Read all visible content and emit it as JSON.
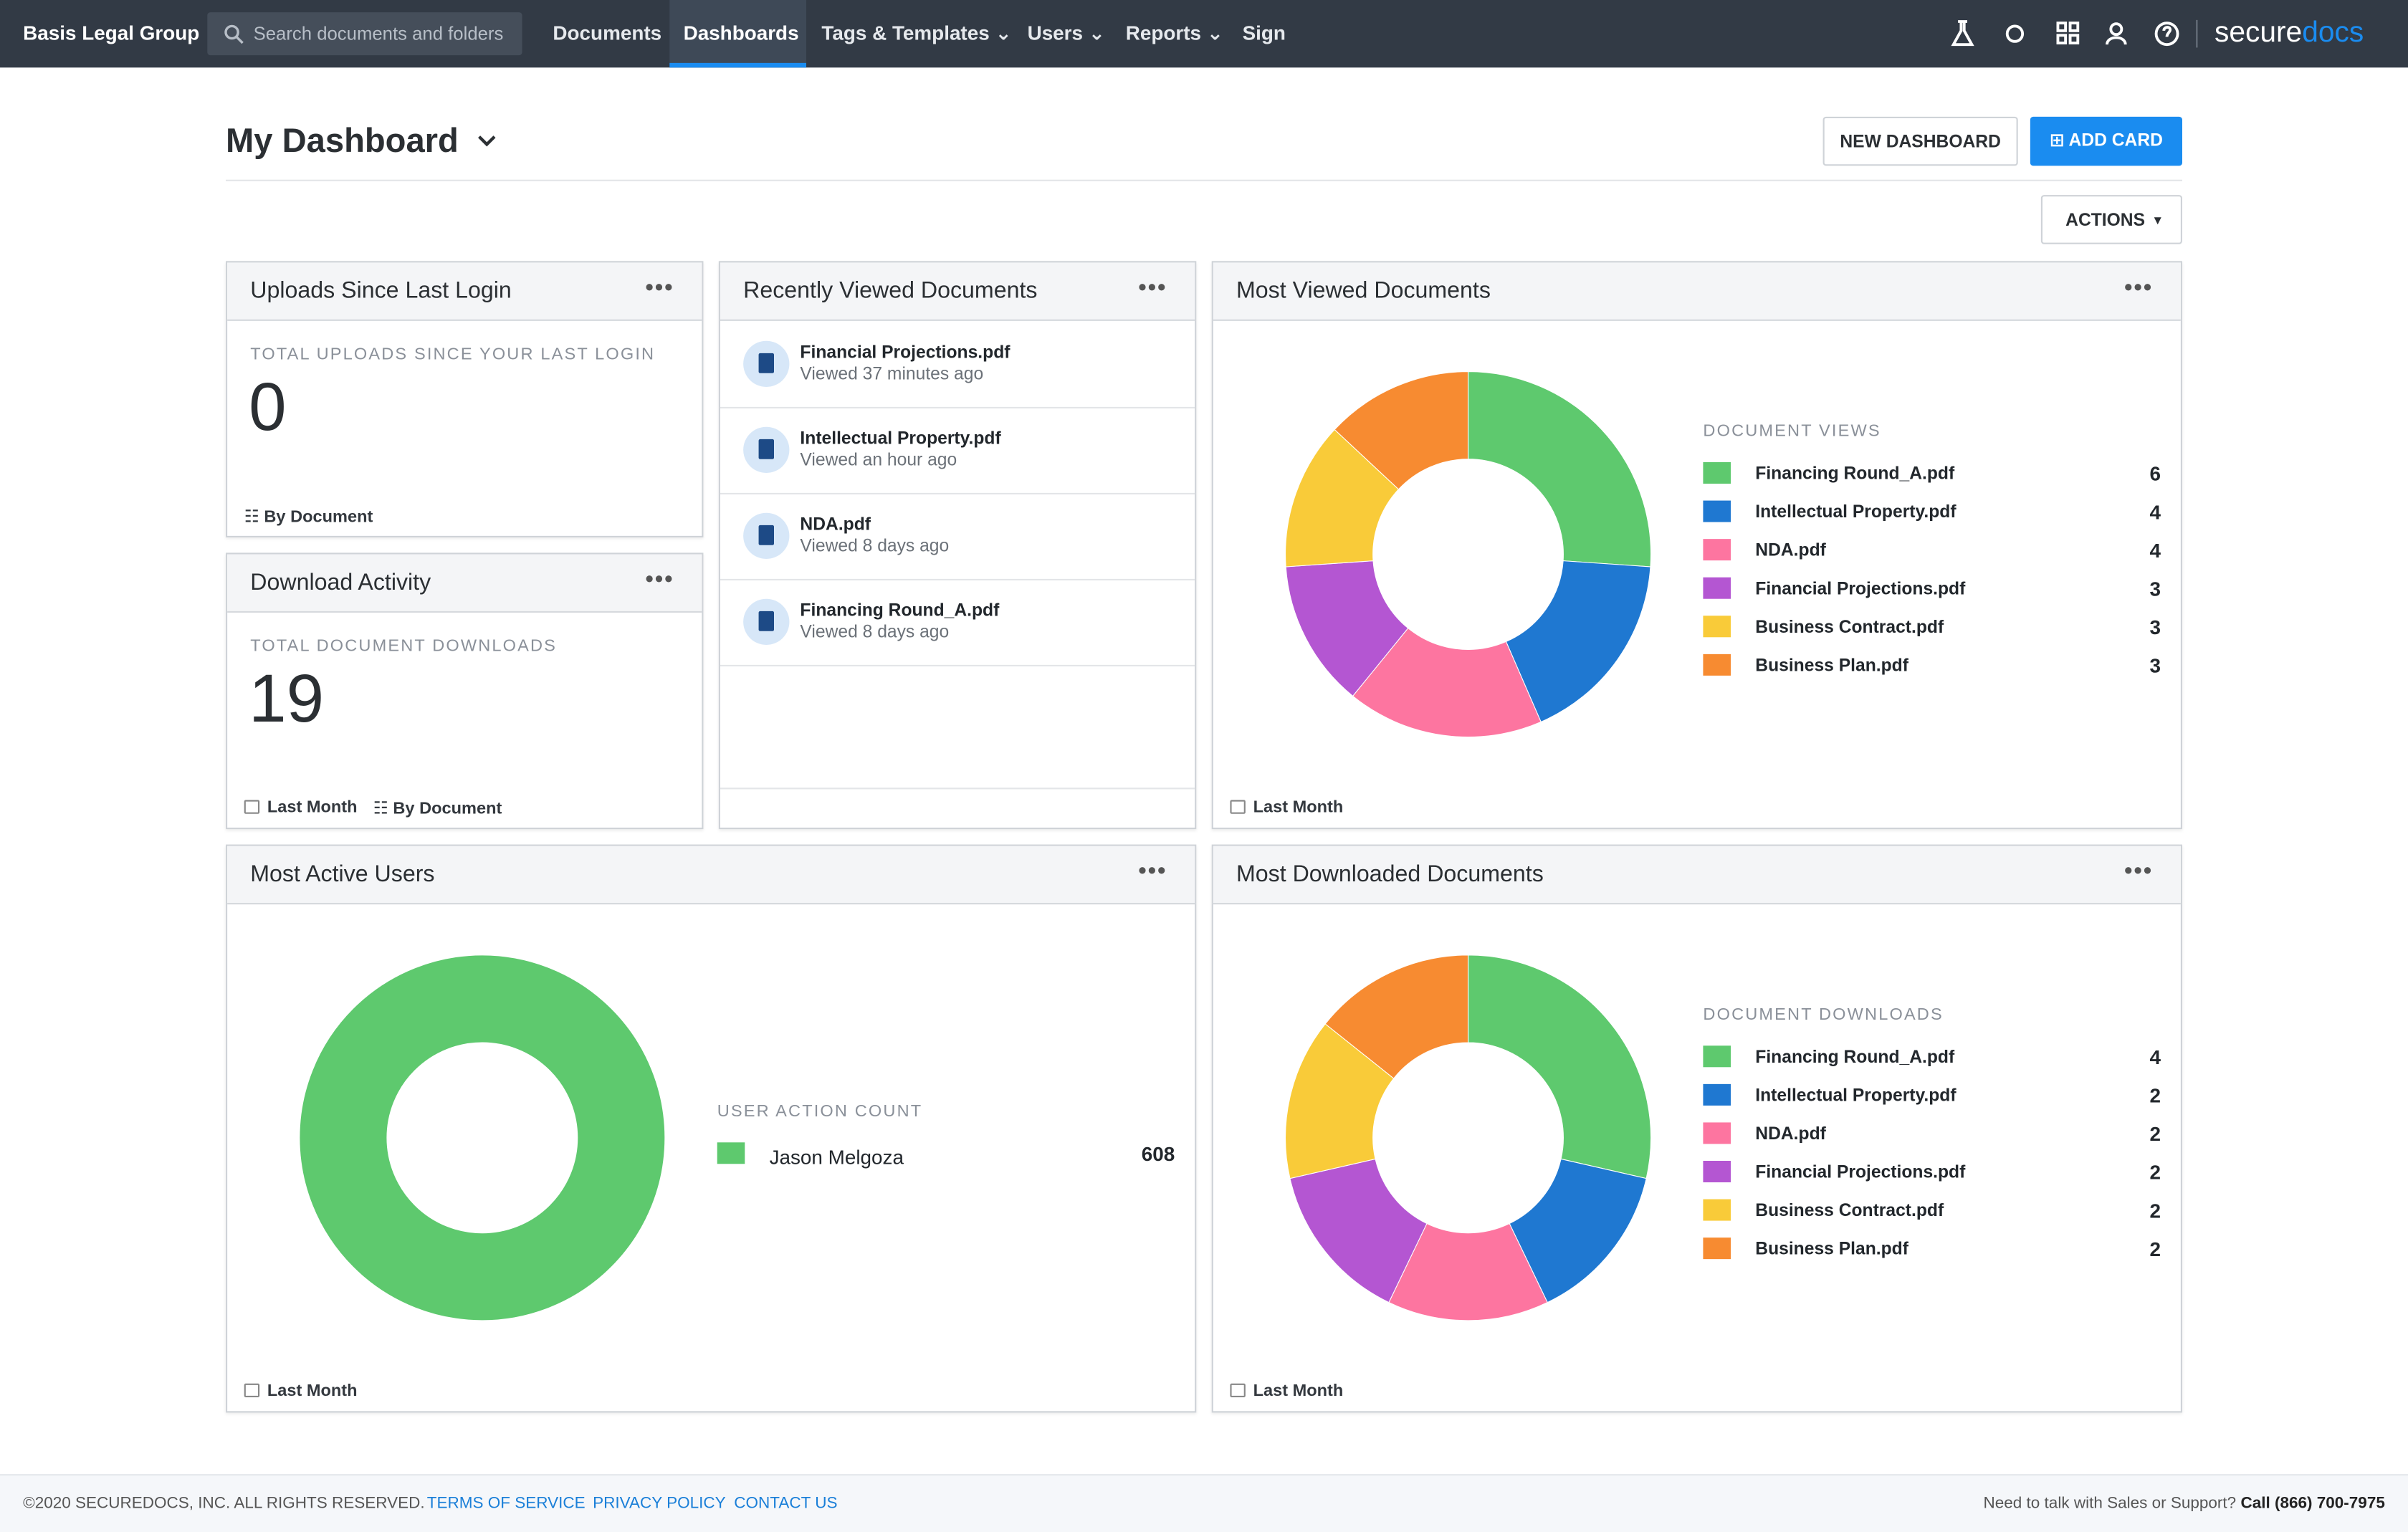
{
  "navbar": {
    "org": "Basis Legal Group",
    "search_placeholder": "Search documents and folders",
    "links": [
      "Documents",
      "Dashboards",
      "Tags & Templates",
      "Users",
      "Reports",
      "Sign"
    ],
    "brand": [
      "secure",
      "docs"
    ]
  },
  "header": {
    "title": "My Dashboard",
    "new_dashboard": "NEW DASHBOARD",
    "add_card": "ADD CARD",
    "actions": "ACTIONS"
  },
  "cards": {
    "uploads": {
      "title": "Uploads Since Last Login",
      "label": "TOTAL UPLOADS SINCE YOUR LAST LOGIN",
      "value": 0,
      "filters": [
        "By Document"
      ]
    },
    "downloads": {
      "title": "Download Activity",
      "label": "TOTAL DOCUMENT DOWNLOADS",
      "value": 19,
      "filters": [
        "Last Month",
        "By Document"
      ]
    },
    "recent": {
      "title": "Recently Viewed Documents",
      "items": [
        {
          "name": "Financial Projections.pdf",
          "time": "Viewed 37 minutes ago"
        },
        {
          "name": "Intellectual Property.pdf",
          "time": "Viewed an hour ago"
        },
        {
          "name": "NDA.pdf",
          "time": "Viewed 8 days ago"
        },
        {
          "name": "Financing Round_A.pdf",
          "time": "Viewed 8 days ago"
        }
      ]
    }
  },
  "chart_data": [
    {
      "type": "pie",
      "title": "Most Viewed Documents",
      "legend_title": "DOCUMENT VIEWS",
      "filter": "Last Month",
      "categories": [
        "Financing Round_A.pdf",
        "Intellectual Property.pdf",
        "NDA.pdf",
        "Financial Projections.pdf",
        "Business Contract.pdf",
        "Business Plan.pdf"
      ],
      "values": [
        6,
        4,
        4,
        3,
        3,
        3
      ],
      "colors": [
        "#5ec96e",
        "#1f78d1",
        "#fd75a0",
        "#b456d2",
        "#f9cb39",
        "#f78b31"
      ]
    },
    {
      "type": "pie",
      "title": "Most Active Users",
      "legend_title": "USER ACTION COUNT",
      "filter": "Last Month",
      "categories": [
        "Jason Melgoza"
      ],
      "values": [
        608
      ],
      "colors": [
        "#5ec96e"
      ]
    },
    {
      "type": "pie",
      "title": "Most Downloaded Documents",
      "legend_title": "DOCUMENT DOWNLOADS",
      "filter": "Last Month",
      "categories": [
        "Financing Round_A.pdf",
        "Intellectual Property.pdf",
        "NDA.pdf",
        "Financial Projections.pdf",
        "Business Contract.pdf",
        "Business Plan.pdf"
      ],
      "values": [
        4,
        2,
        2,
        2,
        2,
        2
      ],
      "colors": [
        "#5ec96e",
        "#1f78d1",
        "#fd75a0",
        "#b456d2",
        "#f9cb39",
        "#f78b31"
      ]
    }
  ],
  "footer": {
    "copyright": "©2020 SECUREDOCS, INC. ALL RIGHTS RESERVED.",
    "links": [
      "TERMS OF SERVICE",
      "PRIVACY POLICY",
      "CONTACT US"
    ],
    "support": "Need to talk with Sales or Support?",
    "phone": "Call (866) 700-7975"
  }
}
